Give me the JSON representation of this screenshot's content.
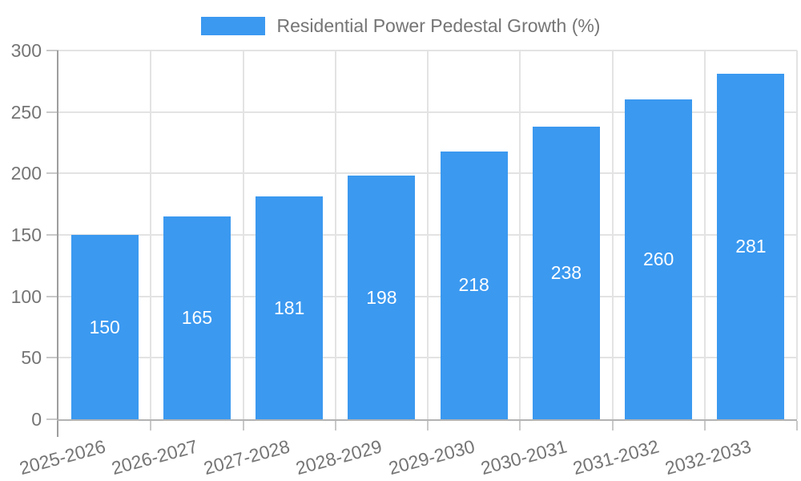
{
  "chart_data": {
    "type": "bar",
    "title": "",
    "legend_label": "Residential Power Pedestal Growth (%)",
    "categories": [
      "2025-2026",
      "2026-2027",
      "2027-2028",
      "2028-2029",
      "2029-2030",
      "2030-2031",
      "2031-2032",
      "2032-2033"
    ],
    "values": [
      150,
      165,
      181,
      198,
      218,
      238,
      260,
      281
    ],
    "xlabel": "",
    "ylabel": "",
    "ylim": [
      0,
      300
    ],
    "yticks": [
      0,
      50,
      100,
      150,
      200,
      250,
      300
    ],
    "grid": true,
    "legend_position": "top-center",
    "x_tick_rotation_deg": -15,
    "colors": {
      "bar": "#3b99f0",
      "value_label": "#ffffff",
      "tick_text": "#757575",
      "legend_text": "#757575",
      "gridline": "#e3e3e3",
      "y_axis_line": "#9e9e9e",
      "x_axis_line": "#b3b3b3",
      "tick_mark": "#c9c9c9",
      "background": "#ffffff"
    }
  }
}
